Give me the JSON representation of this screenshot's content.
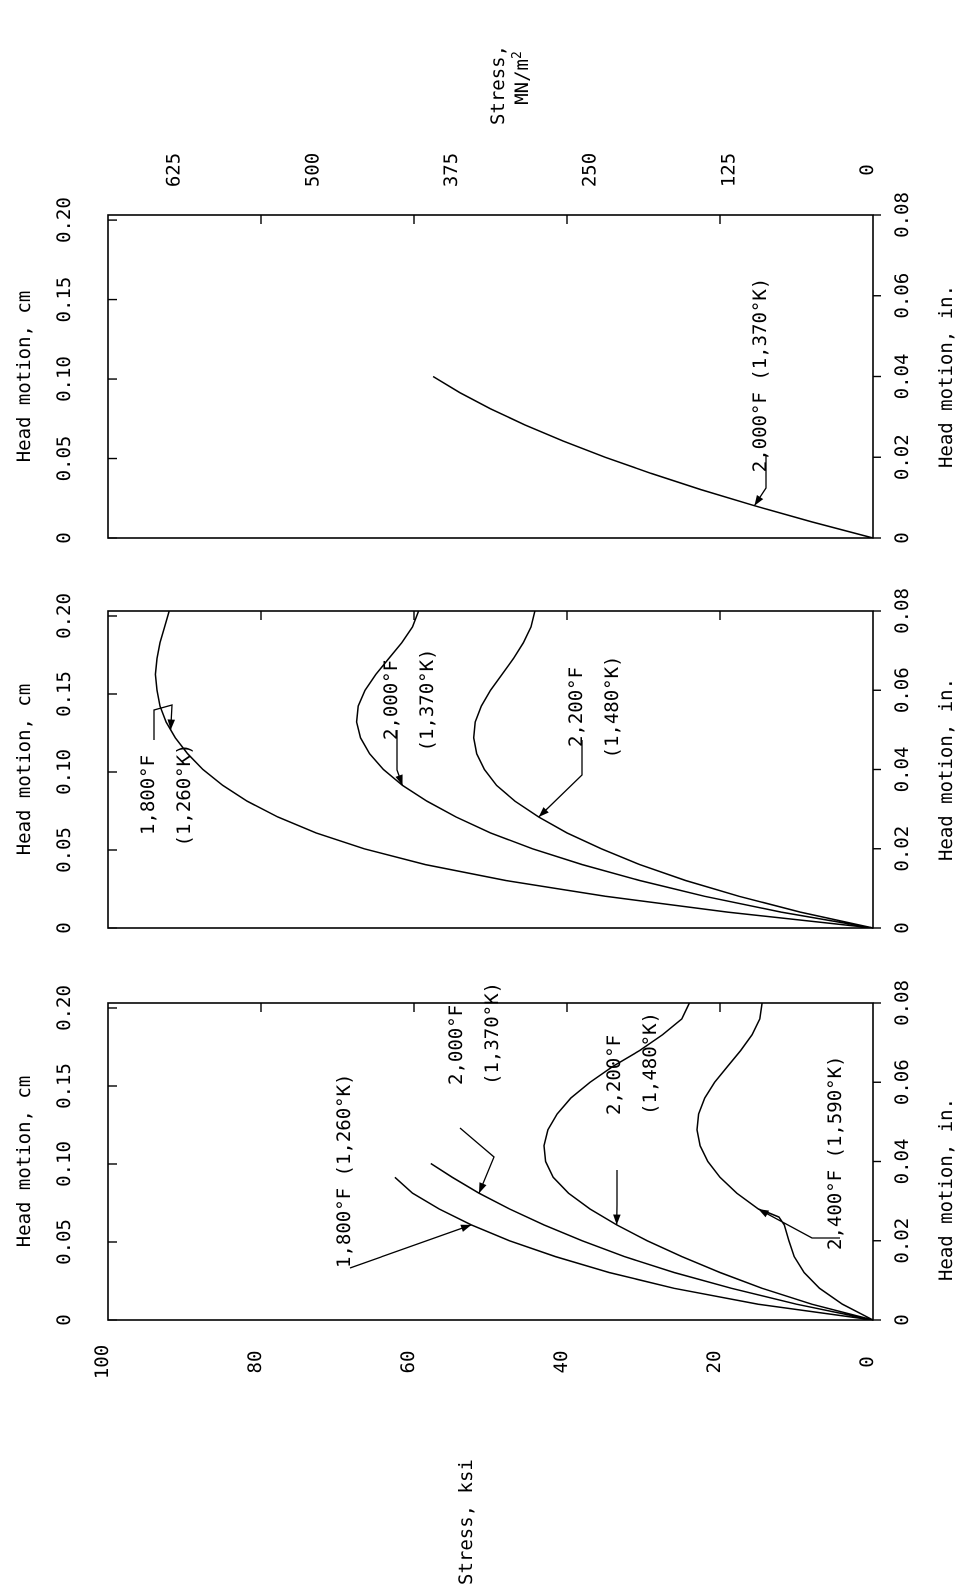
{
  "figure": {
    "stress_ksi_label": "Stress, ksi",
    "stress_mnm2_label": "Stress,",
    "stress_mnm2_unit_base": "MN/m",
    "stress_mnm2_unit_sup": "2"
  },
  "chart_data": [
    {
      "type": "line",
      "panel": "bottom",
      "x_top": {
        "label": "Head motion, cm",
        "ticks": [
          "0",
          "0.05",
          "0.10",
          "0.15",
          "0.20"
        ],
        "range": [
          0,
          0.2032
        ]
      },
      "x_bottom": {
        "label": "Head motion, in.",
        "ticks": [
          "0",
          "0.02",
          "0.04",
          "0.06",
          "0.08"
        ],
        "range": [
          0,
          0.08
        ]
      },
      "y": {
        "ticks": [
          "0",
          "20",
          "40",
          "60",
          "80",
          "100"
        ],
        "range": [
          0,
          100
        ]
      },
      "series": [
        {
          "label": "1,800°F (1,260°K)",
          "x": [
            0,
            0.004,
            0.008,
            0.012,
            0.016,
            0.02,
            0.024,
            0.028,
            0.032,
            0.036
          ],
          "y": [
            0,
            15,
            26,
            34.5,
            41.5,
            47.5,
            52.5,
            56.7,
            60.2,
            62.5
          ]
        },
        {
          "label": "2,000°F (1,370°K)",
          "x": [
            0,
            0.004,
            0.008,
            0.012,
            0.016,
            0.02,
            0.024,
            0.028,
            0.032,
            0.036,
            0.0395
          ],
          "y": [
            0,
            10,
            18.5,
            26,
            32.5,
            38,
            43,
            47.5,
            51.5,
            55,
            57.8
          ]
        },
        {
          "label": "2,200°F (1,480°K)",
          "x": [
            0,
            0.004,
            0.008,
            0.012,
            0.016,
            0.02,
            0.024,
            0.028,
            0.032,
            0.036,
            0.04,
            0.044,
            0.048,
            0.052,
            0.056,
            0.06,
            0.064,
            0.068,
            0.072,
            0.076,
            0.08
          ],
          "y": [
            0,
            8,
            14.5,
            20,
            25,
            29.5,
            33.5,
            37,
            39.8,
            41.8,
            42.8,
            43,
            42.5,
            41.3,
            39.5,
            37,
            34,
            30.5,
            27.5,
            25,
            24
          ]
        },
        {
          "label": "2,400°F (1,590°K)",
          "x": [
            0,
            0.004,
            0.008,
            0.012,
            0.016,
            0.02,
            0.024,
            0.026,
            0.027,
            0.028,
            0.032,
            0.036,
            0.04,
            0.044,
            0.048,
            0.052,
            0.056,
            0.06,
            0.064,
            0.068,
            0.072,
            0.076,
            0.08
          ],
          "y": [
            0,
            4,
            7,
            9,
            10.3,
            11,
            11.6,
            12.3,
            13.6,
            15,
            17.8,
            20,
            21.6,
            22.6,
            23,
            22.8,
            22,
            20.7,
            19,
            17.3,
            15.8,
            14.8,
            14.5
          ]
        }
      ]
    },
    {
      "type": "line",
      "panel": "middle",
      "x_top": {
        "label": "Head motion, cm",
        "ticks": [
          "0",
          "0.05",
          "0.10",
          "0.15",
          "0.20"
        ],
        "range": [
          0,
          0.2032
        ]
      },
      "x_bottom": {
        "label": "Head motion, in.",
        "ticks": [
          "0",
          "0.02",
          "0.04",
          "0.06",
          "0.08"
        ],
        "range": [
          0,
          0.08
        ]
      },
      "y": {
        "range": [
          0,
          100
        ]
      },
      "series": [
        {
          "label": "1,800°F (1,260°K)",
          "x": [
            0,
            0.004,
            0.008,
            0.012,
            0.016,
            0.02,
            0.024,
            0.028,
            0.032,
            0.036,
            0.04,
            0.044,
            0.048,
            0.052,
            0.056,
            0.06,
            0.064,
            0.068,
            0.072,
            0.076,
            0.08
          ],
          "y": [
            0,
            19,
            35,
            48,
            58.5,
            66.5,
            72.8,
            77.8,
            81.8,
            85,
            87.6,
            89.6,
            91.2,
            92.4,
            93.2,
            93.6,
            93.8,
            93.6,
            93.2,
            92.6,
            92
          ]
        },
        {
          "label": "2,000°F (1,370°K)",
          "x": [
            0,
            0.004,
            0.008,
            0.012,
            0.016,
            0.02,
            0.024,
            0.028,
            0.032,
            0.036,
            0.04,
            0.044,
            0.048,
            0.052,
            0.056,
            0.06,
            0.064,
            0.068,
            0.072,
            0.076,
            0.08
          ],
          "y": [
            0,
            12,
            22,
            30.5,
            38,
            44.5,
            50,
            54.5,
            58.3,
            61.5,
            64,
            65.8,
            67,
            67.5,
            67.3,
            66.4,
            65,
            63.3,
            61.6,
            60.2,
            59.4
          ]
        },
        {
          "label": "2,200°F (1,480°K)",
          "x": [
            0,
            0.004,
            0.008,
            0.012,
            0.016,
            0.02,
            0.024,
            0.028,
            0.032,
            0.036,
            0.04,
            0.044,
            0.048,
            0.052,
            0.056,
            0.06,
            0.064,
            0.068,
            0.072,
            0.076,
            0.08
          ],
          "y": [
            0,
            9.5,
            17.5,
            24.5,
            30.5,
            35.5,
            40,
            43.7,
            46.8,
            49.2,
            50.8,
            51.8,
            52.2,
            52,
            51.2,
            50,
            48.5,
            47,
            45.7,
            44.7,
            44.2
          ]
        }
      ]
    },
    {
      "type": "line",
      "panel": "top",
      "x_top": {
        "label": "Head motion, cm",
        "ticks": [
          "0",
          "0.05",
          "0.10",
          "0.15",
          "0.20"
        ],
        "range": [
          0,
          0.2032
        ]
      },
      "x_bottom": {
        "label": "Head motion, in.",
        "ticks": [
          "0",
          "0.02",
          "0.04",
          "0.06",
          "0.08"
        ],
        "range": [
          0,
          0.08
        ]
      },
      "y": {
        "label": "Stress, MN/m2",
        "ticks": [
          "0",
          "125",
          "250",
          "375",
          "500",
          "625"
        ],
        "range": [
          0,
          689.5
        ]
      },
      "series": [
        {
          "label": "2,000°F (1,370°K)",
          "x": [
            0,
            0.004,
            0.008,
            0.012,
            0.016,
            0.02,
            0.024,
            0.028,
            0.032,
            0.036,
            0.04
          ],
          "y": [
            0,
            8,
            15.5,
            22.5,
            29,
            35,
            40.5,
            45.5,
            50,
            54,
            57.5
          ]
        }
      ]
    }
  ]
}
